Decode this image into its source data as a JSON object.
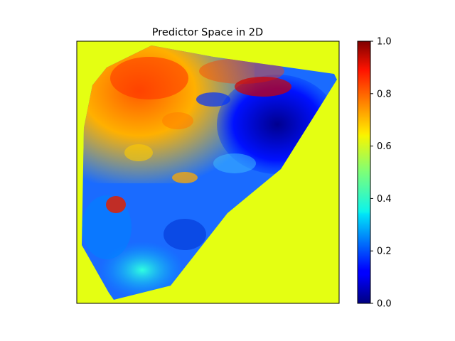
{
  "chart_data": {
    "type": "heatmap",
    "title": "Predictor Space in 2D",
    "xlabel": "",
    "ylabel": "",
    "x_ticks_visible": false,
    "y_ticks_visible": false,
    "colormap": "jet",
    "background_value": 0.62,
    "colorbar": {
      "range": [
        0.0,
        1.0
      ],
      "ticks": [
        "0.0",
        "0.2",
        "0.4",
        "0.6",
        "0.8",
        "1.0"
      ],
      "position": "right"
    },
    "hull_description": "Interpolated predictor values over a convex region; outside region is constant",
    "regions": [
      {
        "area": "upper-left",
        "value": 0.85
      },
      {
        "area": "top-edge",
        "value": 0.95
      },
      {
        "area": "upper-right",
        "value": 0.15
      },
      {
        "area": "center-right",
        "value": 0.05
      },
      {
        "area": "center",
        "value": 0.25
      },
      {
        "area": "lower-left",
        "value": 0.22
      },
      {
        "area": "bottom",
        "value": 0.35
      }
    ]
  }
}
